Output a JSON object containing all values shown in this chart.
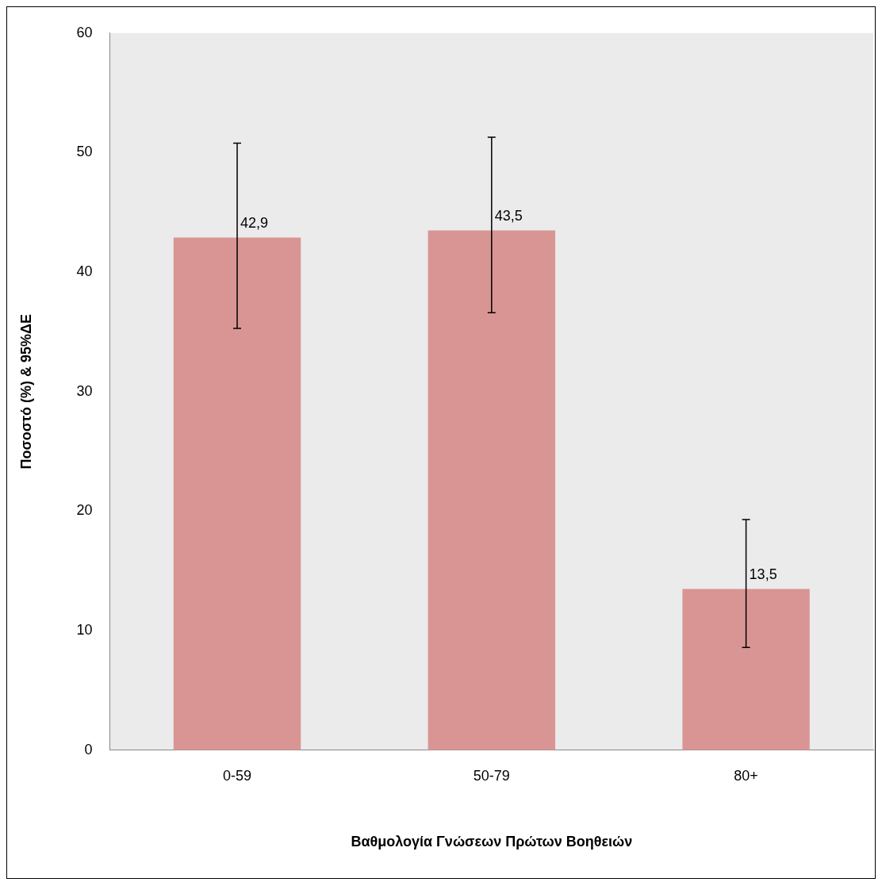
{
  "chart_data": {
    "type": "bar",
    "xlabel": "Βαθμολογία Γνώσεων Πρώτων Βοηθειών",
    "ylabel": "Ποσοστό (%) & 95%ΔΕ",
    "categories": [
      "0-59",
      "50-79",
      "80+"
    ],
    "values": [
      42.9,
      43.5,
      13.5
    ],
    "errors": [
      [
        35.3,
        50.8
      ],
      [
        36.6,
        51.3
      ],
      [
        8.6,
        19.3
      ]
    ],
    "value_labels": [
      "42,9",
      "43,5",
      "13,5"
    ],
    "color": "#d99594",
    "ylim": [
      0,
      60
    ],
    "yticks": [
      0,
      10,
      20,
      30,
      40,
      50,
      60
    ],
    "grid": false,
    "legend": false
  }
}
